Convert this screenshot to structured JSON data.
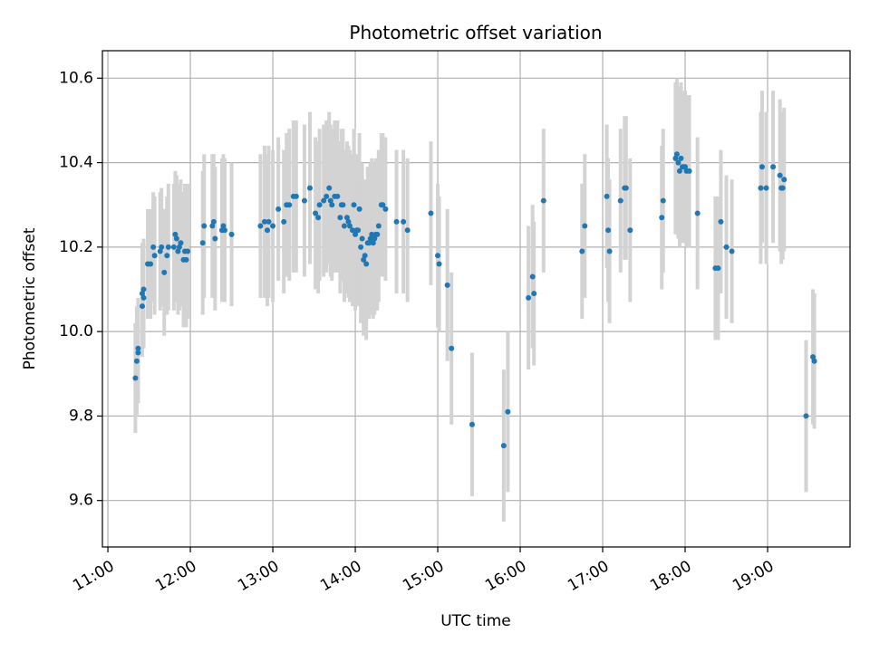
{
  "chart_data": {
    "type": "scatter",
    "title": "Photometric offset variation",
    "xlabel": "UTC time",
    "ylabel": "Photometric offset",
    "x_ticks": [
      "11:00",
      "12:00",
      "13:00",
      "14:00",
      "15:00",
      "16:00",
      "17:00",
      "18:00",
      "19:00"
    ],
    "y_ticks": [
      "9.6",
      "9.8",
      "10.0",
      "10.2",
      "10.4",
      "10.6"
    ],
    "xlim": [
      "10:56",
      "20:00"
    ],
    "ylim": [
      9.49,
      10.665
    ],
    "grid": true,
    "colors": {
      "points": "#1f77b4",
      "errorbars": "#d3d3d3",
      "grid": "#b0b0b0"
    },
    "points": [
      {
        "x": "11:20",
        "y": 9.89,
        "err": 0.13
      },
      {
        "x": "11:21",
        "y": 9.93,
        "err": 0.13
      },
      {
        "x": "11:22",
        "y": 9.95,
        "err": 0.12
      },
      {
        "x": "11:22",
        "y": 9.96,
        "err": 0.12
      },
      {
        "x": "11:25",
        "y": 10.06,
        "err": 0.12
      },
      {
        "x": "11:25",
        "y": 10.09,
        "err": 0.12
      },
      {
        "x": "11:26",
        "y": 10.1,
        "err": 0.12
      },
      {
        "x": "11:26",
        "y": 10.08,
        "err": 0.12
      },
      {
        "x": "11:29",
        "y": 10.16,
        "err": 0.13
      },
      {
        "x": "11:31",
        "y": 10.16,
        "err": 0.13
      },
      {
        "x": "11:33",
        "y": 10.2,
        "err": 0.13
      },
      {
        "x": "11:34",
        "y": 10.18,
        "err": 0.14
      },
      {
        "x": "11:38",
        "y": 10.19,
        "err": 0.14
      },
      {
        "x": "11:39",
        "y": 10.2,
        "err": 0.14
      },
      {
        "x": "11:41",
        "y": 10.14,
        "err": 0.15
      },
      {
        "x": "11:43",
        "y": 10.18,
        "err": 0.14
      },
      {
        "x": "11:44",
        "y": 10.2,
        "err": 0.15
      },
      {
        "x": "11:48",
        "y": 10.2,
        "err": 0.15
      },
      {
        "x": "11:49",
        "y": 10.23,
        "err": 0.15
      },
      {
        "x": "11:50",
        "y": 10.22,
        "err": 0.15
      },
      {
        "x": "11:51",
        "y": 10.19,
        "err": 0.15
      },
      {
        "x": "11:52",
        "y": 10.2,
        "err": 0.15
      },
      {
        "x": "11:53",
        "y": 10.21,
        "err": 0.15
      },
      {
        "x": "11:55",
        "y": 10.17,
        "err": 0.16
      },
      {
        "x": "11:56",
        "y": 10.19,
        "err": 0.16
      },
      {
        "x": "11:57",
        "y": 10.17,
        "err": 0.16
      },
      {
        "x": "11:58",
        "y": 10.19,
        "err": 0.16
      },
      {
        "x": "12:09",
        "y": 10.21,
        "err": 0.17
      },
      {
        "x": "12:10",
        "y": 10.25,
        "err": 0.17
      },
      {
        "x": "12:16",
        "y": 10.25,
        "err": 0.17
      },
      {
        "x": "12:17",
        "y": 10.26,
        "err": 0.16
      },
      {
        "x": "12:18",
        "y": 10.22,
        "err": 0.17
      },
      {
        "x": "12:23",
        "y": 10.24,
        "err": 0.17
      },
      {
        "x": "12:24",
        "y": 10.25,
        "err": 0.17
      },
      {
        "x": "12:25",
        "y": 10.24,
        "err": 0.17
      },
      {
        "x": "12:30",
        "y": 10.23,
        "err": 0.17
      },
      {
        "x": "12:51",
        "y": 10.25,
        "err": 0.17
      },
      {
        "x": "12:54",
        "y": 10.26,
        "err": 0.18
      },
      {
        "x": "12:56",
        "y": 10.24,
        "err": 0.18
      },
      {
        "x": "12:57",
        "y": 10.26,
        "err": 0.18
      },
      {
        "x": "13:00",
        "y": 10.25,
        "err": 0.18
      },
      {
        "x": "13:04",
        "y": 10.29,
        "err": 0.17
      },
      {
        "x": "13:08",
        "y": 10.26,
        "err": 0.17
      },
      {
        "x": "13:10",
        "y": 10.3,
        "err": 0.17
      },
      {
        "x": "13:12",
        "y": 10.3,
        "err": 0.18
      },
      {
        "x": "13:15",
        "y": 10.32,
        "err": 0.18
      },
      {
        "x": "13:17",
        "y": 10.32,
        "err": 0.18
      },
      {
        "x": "13:23",
        "y": 10.31,
        "err": 0.18
      },
      {
        "x": "13:27",
        "y": 10.34,
        "err": 0.18
      },
      {
        "x": "13:31",
        "y": 10.28,
        "err": 0.18
      },
      {
        "x": "13:33",
        "y": 10.27,
        "err": 0.18
      },
      {
        "x": "13:34",
        "y": 10.3,
        "err": 0.18
      },
      {
        "x": "13:37",
        "y": 10.31,
        "err": 0.18
      },
      {
        "x": "13:39",
        "y": 10.32,
        "err": 0.18
      },
      {
        "x": "13:41",
        "y": 10.34,
        "err": 0.18
      },
      {
        "x": "13:42",
        "y": 10.31,
        "err": 0.18
      },
      {
        "x": "13:43",
        "y": 10.3,
        "err": 0.18
      },
      {
        "x": "13:45",
        "y": 10.32,
        "err": 0.18
      },
      {
        "x": "13:47",
        "y": 10.32,
        "err": 0.18
      },
      {
        "x": "13:49",
        "y": 10.27,
        "err": 0.18
      },
      {
        "x": "13:50",
        "y": 10.3,
        "err": 0.18
      },
      {
        "x": "13:51",
        "y": 10.3,
        "err": 0.18
      },
      {
        "x": "13:52",
        "y": 10.25,
        "err": 0.18
      },
      {
        "x": "13:54",
        "y": 10.27,
        "err": 0.18
      },
      {
        "x": "13:55",
        "y": 10.26,
        "err": 0.18
      },
      {
        "x": "13:56",
        "y": 10.25,
        "err": 0.18
      },
      {
        "x": "13:58",
        "y": 10.24,
        "err": 0.18
      },
      {
        "x": "13:59",
        "y": 10.3,
        "err": 0.18
      },
      {
        "x": "14:00",
        "y": 10.23,
        "err": 0.18
      },
      {
        "x": "14:01",
        "y": 10.24,
        "err": 0.18
      },
      {
        "x": "14:02",
        "y": 10.24,
        "err": 0.18
      },
      {
        "x": "14:03",
        "y": 10.29,
        "err": 0.18
      },
      {
        "x": "14:04",
        "y": 10.2,
        "err": 0.18
      },
      {
        "x": "14:05",
        "y": 10.22,
        "err": 0.18
      },
      {
        "x": "14:06",
        "y": 10.17,
        "err": 0.18
      },
      {
        "x": "14:07",
        "y": 10.18,
        "err": 0.18
      },
      {
        "x": "14:08",
        "y": 10.16,
        "err": 0.18
      },
      {
        "x": "14:09",
        "y": 10.21,
        "err": 0.18
      },
      {
        "x": "14:10",
        "y": 10.21,
        "err": 0.18
      },
      {
        "x": "14:11",
        "y": 10.22,
        "err": 0.18
      },
      {
        "x": "14:12",
        "y": 10.23,
        "err": 0.18
      },
      {
        "x": "14:13",
        "y": 10.21,
        "err": 0.18
      },
      {
        "x": "14:14",
        "y": 10.22,
        "err": 0.18
      },
      {
        "x": "14:15",
        "y": 10.23,
        "err": 0.18
      },
      {
        "x": "14:16",
        "y": 10.23,
        "err": 0.18
      },
      {
        "x": "14:17",
        "y": 10.25,
        "err": 0.18
      },
      {
        "x": "14:19",
        "y": 10.3,
        "err": 0.17
      },
      {
        "x": "14:20",
        "y": 10.3,
        "err": 0.17
      },
      {
        "x": "14:22",
        "y": 10.29,
        "err": 0.17
      },
      {
        "x": "14:30",
        "y": 10.26,
        "err": 0.17
      },
      {
        "x": "14:35",
        "y": 10.26,
        "err": 0.17
      },
      {
        "x": "14:38",
        "y": 10.24,
        "err": 0.17
      },
      {
        "x": "14:55",
        "y": 10.28,
        "err": 0.17
      },
      {
        "x": "15:00",
        "y": 10.18,
        "err": 0.17
      },
      {
        "x": "15:01",
        "y": 10.16,
        "err": 0.16
      },
      {
        "x": "15:07",
        "y": 10.11,
        "err": 0.18
      },
      {
        "x": "15:10",
        "y": 9.96,
        "err": 0.18
      },
      {
        "x": "15:25",
        "y": 9.78,
        "err": 0.17
      },
      {
        "x": "15:48",
        "y": 9.73,
        "err": 0.18
      },
      {
        "x": "15:51",
        "y": 9.81,
        "err": 0.19
      },
      {
        "x": "16:06",
        "y": 10.08,
        "err": 0.17
      },
      {
        "x": "16:09",
        "y": 10.13,
        "err": 0.17
      },
      {
        "x": "16:10",
        "y": 10.09,
        "err": 0.17
      },
      {
        "x": "16:17",
        "y": 10.31,
        "err": 0.17
      },
      {
        "x": "16:45",
        "y": 10.19,
        "err": 0.16
      },
      {
        "x": "16:47",
        "y": 10.25,
        "err": 0.17
      },
      {
        "x": "17:03",
        "y": 10.32,
        "err": 0.17
      },
      {
        "x": "17:04",
        "y": 10.24,
        "err": 0.17
      },
      {
        "x": "17:05",
        "y": 10.19,
        "err": 0.17
      },
      {
        "x": "17:13",
        "y": 10.31,
        "err": 0.17
      },
      {
        "x": "17:16",
        "y": 10.34,
        "err": 0.17
      },
      {
        "x": "17:17",
        "y": 10.34,
        "err": 0.17
      },
      {
        "x": "17:20",
        "y": 10.24,
        "err": 0.17
      },
      {
        "x": "17:43",
        "y": 10.27,
        "err": 0.17
      },
      {
        "x": "17:44",
        "y": 10.31,
        "err": 0.17
      },
      {
        "x": "17:53",
        "y": 10.41,
        "err": 0.18
      },
      {
        "x": "17:54",
        "y": 10.42,
        "err": 0.18
      },
      {
        "x": "17:55",
        "y": 10.4,
        "err": 0.18
      },
      {
        "x": "17:56",
        "y": 10.38,
        "err": 0.18
      },
      {
        "x": "17:57",
        "y": 10.41,
        "err": 0.18
      },
      {
        "x": "17:58",
        "y": 10.39,
        "err": 0.18
      },
      {
        "x": "17:59",
        "y": 10.39,
        "err": 0.18
      },
      {
        "x": "18:00",
        "y": 10.39,
        "err": 0.18
      },
      {
        "x": "18:01",
        "y": 10.38,
        "err": 0.18
      },
      {
        "x": "18:03",
        "y": 10.38,
        "err": 0.18
      },
      {
        "x": "18:09",
        "y": 10.28,
        "err": 0.18
      },
      {
        "x": "18:22",
        "y": 10.15,
        "err": 0.17
      },
      {
        "x": "18:24",
        "y": 10.15,
        "err": 0.17
      },
      {
        "x": "18:26",
        "y": 10.26,
        "err": 0.17
      },
      {
        "x": "18:30",
        "y": 10.2,
        "err": 0.17
      },
      {
        "x": "18:34",
        "y": 10.19,
        "err": 0.17
      },
      {
        "x": "18:55",
        "y": 10.34,
        "err": 0.18
      },
      {
        "x": "18:56",
        "y": 10.39,
        "err": 0.18
      },
      {
        "x": "18:59",
        "y": 10.34,
        "err": 0.18
      },
      {
        "x": "19:04",
        "y": 10.39,
        "err": 0.18
      },
      {
        "x": "19:09",
        "y": 10.37,
        "err": 0.18
      },
      {
        "x": "19:10",
        "y": 10.34,
        "err": 0.18
      },
      {
        "x": "19:11",
        "y": 10.34,
        "err": 0.17
      },
      {
        "x": "19:12",
        "y": 10.36,
        "err": 0.17
      },
      {
        "x": "19:28",
        "y": 9.8,
        "err": 0.18
      },
      {
        "x": "19:33",
        "y": 9.94,
        "err": 0.16
      },
      {
        "x": "19:34",
        "y": 9.93,
        "err": 0.16
      }
    ]
  }
}
